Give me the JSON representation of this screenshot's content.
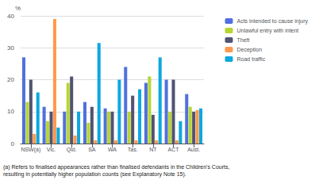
{
  "chart_data": {
    "type": "bar",
    "categories": [
      "NSW(a)",
      "Vic.",
      "Qld.",
      "SA",
      "WA",
      "Tas.",
      "NT",
      "ACT",
      "Aust."
    ],
    "series": [
      {
        "name": "Acts intended to cause injury",
        "values": [
          27,
          11.5,
          10,
          13,
          11,
          24,
          19,
          20,
          15.5
        ]
      },
      {
        "name": "Unlawful entry with intent",
        "values": [
          13,
          7,
          19,
          6.5,
          10,
          10,
          21,
          10,
          11.5
        ]
      },
      {
        "name": "Theft",
        "values": [
          20,
          10,
          21,
          11.5,
          10,
          15,
          9,
          20,
          10
        ]
      },
      {
        "name": "Deception",
        "values": [
          3,
          39,
          2.5,
          1,
          1,
          1,
          1,
          1,
          10.5
        ]
      },
      {
        "name": "Road traffic",
        "values": [
          16,
          5,
          10,
          31.5,
          20,
          17,
          27,
          7,
          11
        ]
      }
    ],
    "y_label": "%",
    "ylim": [
      0,
      40
    ],
    "yticks": [
      0,
      10,
      20,
      30,
      40
    ],
    "grid": true,
    "legend": "right",
    "annotations": [
      "(a) Refers to finalised appearances rather than finalised defendants in the Children's Courts,\nresulting in potentially higher population counts (see Explanatory Note 15)."
    ]
  }
}
